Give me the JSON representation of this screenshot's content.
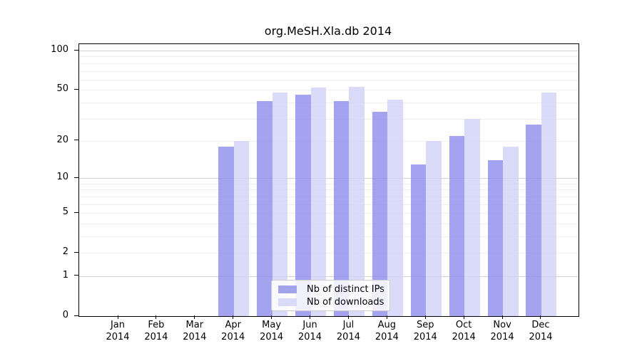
{
  "chart_data": {
    "type": "bar",
    "title": "org.MeSH.Xla.db 2014",
    "categories": [
      "Jan",
      "Feb",
      "Mar",
      "Apr",
      "May",
      "Jun",
      "Jul",
      "Aug",
      "Sep",
      "Oct",
      "Nov",
      "Dec"
    ],
    "year_label": "2014",
    "series": [
      {
        "name": "Nb of distinct IPs",
        "bar_color": "rgba(140,140,236,0.8)",
        "legend_color": "#a3a3ec",
        "values": [
          0,
          0,
          0,
          18,
          41,
          46,
          41,
          34,
          13,
          22,
          14,
          27
        ]
      },
      {
        "name": "Nb of downloads",
        "bar_color": "rgba(209,209,248,0.8)",
        "legend_color": "#dadaf9",
        "values": [
          0,
          0,
          0,
          20,
          48,
          52,
          53,
          42,
          20,
          30,
          18,
          48
        ]
      }
    ],
    "yscale": "log1p",
    "ylim": [
      0,
      112
    ],
    "yticks": [
      100,
      50,
      20,
      10,
      5,
      2,
      1,
      0
    ],
    "grid_major": [
      1,
      10,
      100
    ],
    "grid_minor": [
      2,
      3,
      4,
      5,
      6,
      7,
      8,
      9,
      20,
      30,
      40,
      50,
      60,
      70,
      80,
      90
    ],
    "legend_position": "lower-center",
    "grid": "on"
  }
}
